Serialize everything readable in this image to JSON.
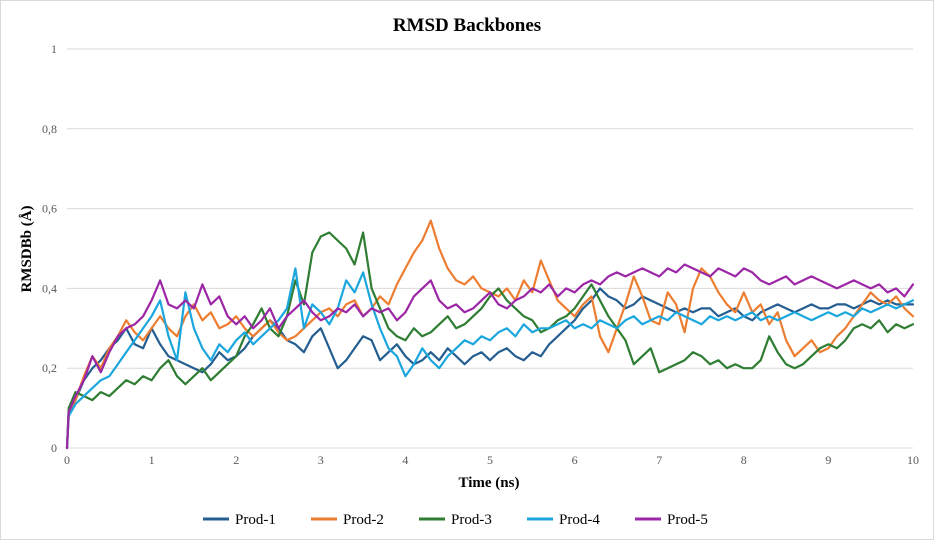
{
  "chart_data": {
    "type": "line",
    "title": "RMSD Backbones",
    "xlabel": "Time (ns)",
    "ylabel": "RMSDBb (Å)",
    "xlim": [
      0,
      10
    ],
    "ylim": [
      0,
      1
    ],
    "x_ticks": [
      "0",
      "1",
      "2",
      "3",
      "4",
      "5",
      "6",
      "7",
      "8",
      "9",
      "10"
    ],
    "y_ticks": [
      "0",
      "0,2",
      "0,4",
      "0,6",
      "0,8",
      "1"
    ],
    "grid": "horizontal",
    "legend_position": "bottom",
    "series": [
      {
        "name": "Prod-1",
        "color": "#255e91",
        "x": [
          0,
          0.02,
          0.1,
          0.2,
          0.3,
          0.4,
          0.5,
          0.6,
          0.7,
          0.8,
          0.9,
          1.0,
          1.1,
          1.2,
          1.3,
          1.4,
          1.5,
          1.6,
          1.7,
          1.8,
          1.9,
          2.0,
          2.1,
          2.2,
          2.3,
          2.4,
          2.5,
          2.6,
          2.7,
          2.8,
          2.9,
          3.0,
          3.1,
          3.2,
          3.3,
          3.4,
          3.5,
          3.6,
          3.7,
          3.8,
          3.9,
          4.0,
          4.1,
          4.2,
          4.3,
          4.4,
          4.5,
          4.6,
          4.7,
          4.8,
          4.9,
          5.0,
          5.1,
          5.2,
          5.3,
          5.4,
          5.5,
          5.6,
          5.7,
          5.8,
          5.9,
          6.0,
          6.1,
          6.2,
          6.3,
          6.4,
          6.5,
          6.6,
          6.7,
          6.8,
          6.9,
          7.0,
          7.1,
          7.2,
          7.3,
          7.4,
          7.5,
          7.6,
          7.7,
          7.8,
          7.9,
          8.0,
          8.1,
          8.2,
          8.3,
          8.4,
          8.5,
          8.6,
          8.7,
          8.8,
          8.9,
          9.0,
          9.1,
          9.2,
          9.3,
          9.4,
          9.5,
          9.6,
          9.7,
          9.8,
          9.9,
          10.0
        ],
        "values": [
          0.0,
          0.09,
          0.12,
          0.17,
          0.2,
          0.22,
          0.25,
          0.27,
          0.3,
          0.26,
          0.25,
          0.3,
          0.26,
          0.23,
          0.22,
          0.21,
          0.2,
          0.19,
          0.21,
          0.24,
          0.22,
          0.23,
          0.25,
          0.28,
          0.3,
          0.32,
          0.3,
          0.27,
          0.26,
          0.24,
          0.28,
          0.3,
          0.25,
          0.2,
          0.22,
          0.25,
          0.28,
          0.27,
          0.22,
          0.24,
          0.26,
          0.23,
          0.21,
          0.22,
          0.24,
          0.22,
          0.25,
          0.23,
          0.21,
          0.23,
          0.24,
          0.22,
          0.24,
          0.25,
          0.23,
          0.22,
          0.24,
          0.23,
          0.26,
          0.28,
          0.3,
          0.32,
          0.35,
          0.37,
          0.4,
          0.38,
          0.37,
          0.35,
          0.36,
          0.38,
          0.37,
          0.36,
          0.35,
          0.34,
          0.35,
          0.34,
          0.35,
          0.35,
          0.33,
          0.34,
          0.35,
          0.33,
          0.32,
          0.34,
          0.35,
          0.36,
          0.35,
          0.34,
          0.35,
          0.36,
          0.35,
          0.35,
          0.36,
          0.36,
          0.35,
          0.36,
          0.37,
          0.36,
          0.37,
          0.36,
          0.36,
          0.36
        ]
      },
      {
        "name": "Prod-2",
        "color": "#ed7d31",
        "x": [
          0,
          0.02,
          0.1,
          0.2,
          0.3,
          0.4,
          0.5,
          0.6,
          0.7,
          0.8,
          0.9,
          1.0,
          1.1,
          1.2,
          1.3,
          1.4,
          1.5,
          1.6,
          1.7,
          1.8,
          1.9,
          2.0,
          2.1,
          2.2,
          2.3,
          2.4,
          2.5,
          2.6,
          2.7,
          2.8,
          2.9,
          3.0,
          3.1,
          3.2,
          3.3,
          3.4,
          3.5,
          3.6,
          3.7,
          3.8,
          3.9,
          4.0,
          4.1,
          4.2,
          4.3,
          4.4,
          4.5,
          4.6,
          4.7,
          4.8,
          4.9,
          5.0,
          5.1,
          5.2,
          5.3,
          5.4,
          5.5,
          5.6,
          5.7,
          5.8,
          5.9,
          6.0,
          6.1,
          6.2,
          6.3,
          6.4,
          6.5,
          6.6,
          6.7,
          6.8,
          6.9,
          7.0,
          7.1,
          7.2,
          7.3,
          7.4,
          7.5,
          7.6,
          7.7,
          7.8,
          7.9,
          8.0,
          8.1,
          8.2,
          8.3,
          8.4,
          8.5,
          8.6,
          8.7,
          8.8,
          8.9,
          9.0,
          9.1,
          9.2,
          9.3,
          9.4,
          9.5,
          9.6,
          9.7,
          9.8,
          9.9,
          10.0
        ],
        "values": [
          0.0,
          0.08,
          0.12,
          0.18,
          0.23,
          0.2,
          0.25,
          0.28,
          0.32,
          0.29,
          0.27,
          0.3,
          0.33,
          0.3,
          0.28,
          0.33,
          0.36,
          0.32,
          0.34,
          0.3,
          0.31,
          0.33,
          0.3,
          0.28,
          0.3,
          0.32,
          0.29,
          0.27,
          0.28,
          0.3,
          0.32,
          0.34,
          0.35,
          0.33,
          0.36,
          0.37,
          0.33,
          0.35,
          0.38,
          0.36,
          0.41,
          0.45,
          0.49,
          0.52,
          0.57,
          0.5,
          0.45,
          0.42,
          0.41,
          0.43,
          0.4,
          0.39,
          0.38,
          0.4,
          0.37,
          0.42,
          0.39,
          0.47,
          0.42,
          0.37,
          0.35,
          0.33,
          0.36,
          0.38,
          0.28,
          0.24,
          0.3,
          0.36,
          0.43,
          0.38,
          0.32,
          0.31,
          0.39,
          0.36,
          0.29,
          0.4,
          0.45,
          0.43,
          0.39,
          0.36,
          0.34,
          0.39,
          0.34,
          0.36,
          0.31,
          0.34,
          0.27,
          0.23,
          0.25,
          0.27,
          0.24,
          0.25,
          0.28,
          0.3,
          0.33,
          0.36,
          0.39,
          0.37,
          0.36,
          0.38,
          0.35,
          0.33
        ]
      },
      {
        "name": "Prod-3",
        "color": "#2e7d32",
        "x": [
          0,
          0.02,
          0.1,
          0.2,
          0.3,
          0.4,
          0.5,
          0.6,
          0.7,
          0.8,
          0.9,
          1.0,
          1.1,
          1.2,
          1.3,
          1.4,
          1.5,
          1.6,
          1.7,
          1.8,
          1.9,
          2.0,
          2.1,
          2.2,
          2.3,
          2.4,
          2.5,
          2.6,
          2.7,
          2.8,
          2.9,
          3.0,
          3.1,
          3.2,
          3.3,
          3.4,
          3.5,
          3.6,
          3.7,
          3.8,
          3.9,
          4.0,
          4.1,
          4.2,
          4.3,
          4.4,
          4.5,
          4.6,
          4.7,
          4.8,
          4.9,
          5.0,
          5.1,
          5.2,
          5.3,
          5.4,
          5.5,
          5.6,
          5.7,
          5.8,
          5.9,
          6.0,
          6.1,
          6.2,
          6.3,
          6.4,
          6.5,
          6.6,
          6.7,
          6.8,
          6.9,
          7.0,
          7.1,
          7.2,
          7.3,
          7.4,
          7.5,
          7.6,
          7.7,
          7.8,
          7.9,
          8.0,
          8.1,
          8.2,
          8.3,
          8.4,
          8.5,
          8.6,
          8.7,
          8.8,
          8.9,
          9.0,
          9.1,
          9.2,
          9.3,
          9.4,
          9.5,
          9.6,
          9.7,
          9.8,
          9.9,
          10.0
        ],
        "values": [
          0.0,
          0.1,
          0.14,
          0.13,
          0.12,
          0.14,
          0.13,
          0.15,
          0.17,
          0.16,
          0.18,
          0.17,
          0.2,
          0.22,
          0.18,
          0.16,
          0.18,
          0.2,
          0.17,
          0.19,
          0.21,
          0.23,
          0.28,
          0.31,
          0.35,
          0.3,
          0.28,
          0.33,
          0.42,
          0.36,
          0.49,
          0.53,
          0.54,
          0.52,
          0.5,
          0.46,
          0.54,
          0.4,
          0.35,
          0.3,
          0.28,
          0.27,
          0.3,
          0.28,
          0.29,
          0.31,
          0.33,
          0.3,
          0.31,
          0.33,
          0.35,
          0.38,
          0.4,
          0.37,
          0.35,
          0.33,
          0.32,
          0.29,
          0.3,
          0.32,
          0.33,
          0.35,
          0.38,
          0.41,
          0.37,
          0.33,
          0.3,
          0.27,
          0.21,
          0.23,
          0.25,
          0.19,
          0.2,
          0.21,
          0.22,
          0.24,
          0.23,
          0.21,
          0.22,
          0.2,
          0.21,
          0.2,
          0.2,
          0.22,
          0.28,
          0.24,
          0.21,
          0.2,
          0.21,
          0.23,
          0.25,
          0.26,
          0.25,
          0.27,
          0.3,
          0.31,
          0.3,
          0.32,
          0.29,
          0.31,
          0.3,
          0.31
        ]
      },
      {
        "name": "Prod-4",
        "color": "#1ba7de",
        "x": [
          0,
          0.02,
          0.1,
          0.2,
          0.3,
          0.4,
          0.5,
          0.6,
          0.7,
          0.8,
          0.9,
          1.0,
          1.1,
          1.2,
          1.3,
          1.4,
          1.5,
          1.6,
          1.7,
          1.8,
          1.9,
          2.0,
          2.1,
          2.2,
          2.3,
          2.4,
          2.5,
          2.6,
          2.7,
          2.8,
          2.9,
          3.0,
          3.1,
          3.2,
          3.3,
          3.4,
          3.5,
          3.6,
          3.7,
          3.8,
          3.9,
          4.0,
          4.1,
          4.2,
          4.3,
          4.4,
          4.5,
          4.6,
          4.7,
          4.8,
          4.9,
          5.0,
          5.1,
          5.2,
          5.3,
          5.4,
          5.5,
          5.6,
          5.7,
          5.8,
          5.9,
          6.0,
          6.1,
          6.2,
          6.3,
          6.4,
          6.5,
          6.6,
          6.7,
          6.8,
          6.9,
          7.0,
          7.1,
          7.2,
          7.3,
          7.4,
          7.5,
          7.6,
          7.7,
          7.8,
          7.9,
          8.0,
          8.1,
          8.2,
          8.3,
          8.4,
          8.5,
          8.6,
          8.7,
          8.8,
          8.9,
          9.0,
          9.1,
          9.2,
          9.3,
          9.4,
          9.5,
          9.6,
          9.7,
          9.8,
          9.9,
          10.0
        ],
        "values": [
          0.0,
          0.08,
          0.11,
          0.13,
          0.15,
          0.17,
          0.18,
          0.21,
          0.24,
          0.27,
          0.3,
          0.33,
          0.37,
          0.28,
          0.22,
          0.39,
          0.3,
          0.25,
          0.22,
          0.26,
          0.24,
          0.27,
          0.29,
          0.26,
          0.28,
          0.3,
          0.32,
          0.35,
          0.45,
          0.3,
          0.36,
          0.34,
          0.31,
          0.35,
          0.42,
          0.39,
          0.44,
          0.36,
          0.3,
          0.25,
          0.23,
          0.18,
          0.21,
          0.25,
          0.22,
          0.2,
          0.23,
          0.25,
          0.27,
          0.26,
          0.28,
          0.27,
          0.29,
          0.3,
          0.28,
          0.31,
          0.29,
          0.3,
          0.3,
          0.31,
          0.32,
          0.3,
          0.31,
          0.3,
          0.32,
          0.31,
          0.3,
          0.32,
          0.33,
          0.31,
          0.32,
          0.33,
          0.32,
          0.34,
          0.33,
          0.32,
          0.31,
          0.33,
          0.32,
          0.33,
          0.32,
          0.33,
          0.34,
          0.32,
          0.33,
          0.32,
          0.33,
          0.34,
          0.33,
          0.32,
          0.33,
          0.34,
          0.33,
          0.34,
          0.33,
          0.35,
          0.34,
          0.35,
          0.36,
          0.35,
          0.36,
          0.37
        ]
      },
      {
        "name": "Prod-5",
        "color": "#9c27a6",
        "x": [
          0,
          0.02,
          0.1,
          0.2,
          0.3,
          0.4,
          0.5,
          0.6,
          0.7,
          0.8,
          0.9,
          1.0,
          1.1,
          1.2,
          1.3,
          1.4,
          1.5,
          1.6,
          1.7,
          1.8,
          1.9,
          2.0,
          2.1,
          2.2,
          2.3,
          2.4,
          2.5,
          2.6,
          2.7,
          2.8,
          2.9,
          3.0,
          3.1,
          3.2,
          3.3,
          3.4,
          3.5,
          3.6,
          3.7,
          3.8,
          3.9,
          4.0,
          4.1,
          4.2,
          4.3,
          4.4,
          4.5,
          4.6,
          4.7,
          4.8,
          4.9,
          5.0,
          5.1,
          5.2,
          5.3,
          5.4,
          5.5,
          5.6,
          5.7,
          5.8,
          5.9,
          6.0,
          6.1,
          6.2,
          6.3,
          6.4,
          6.5,
          6.6,
          6.7,
          6.8,
          6.9,
          7.0,
          7.1,
          7.2,
          7.3,
          7.4,
          7.5,
          7.6,
          7.7,
          7.8,
          7.9,
          8.0,
          8.1,
          8.2,
          8.3,
          8.4,
          8.5,
          8.6,
          8.7,
          8.8,
          8.9,
          9.0,
          9.1,
          9.2,
          9.3,
          9.4,
          9.5,
          9.6,
          9.7,
          9.8,
          9.9,
          10.0
        ],
        "values": [
          0.0,
          0.09,
          0.13,
          0.17,
          0.23,
          0.19,
          0.24,
          0.28,
          0.3,
          0.31,
          0.33,
          0.37,
          0.42,
          0.36,
          0.35,
          0.37,
          0.35,
          0.41,
          0.36,
          0.38,
          0.33,
          0.31,
          0.33,
          0.3,
          0.32,
          0.35,
          0.3,
          0.33,
          0.35,
          0.37,
          0.34,
          0.32,
          0.33,
          0.35,
          0.34,
          0.36,
          0.33,
          0.35,
          0.34,
          0.35,
          0.32,
          0.34,
          0.38,
          0.4,
          0.42,
          0.37,
          0.35,
          0.36,
          0.34,
          0.35,
          0.37,
          0.39,
          0.36,
          0.35,
          0.37,
          0.38,
          0.4,
          0.39,
          0.41,
          0.38,
          0.4,
          0.39,
          0.41,
          0.42,
          0.41,
          0.43,
          0.44,
          0.43,
          0.44,
          0.45,
          0.44,
          0.43,
          0.45,
          0.44,
          0.46,
          0.45,
          0.44,
          0.43,
          0.45,
          0.44,
          0.43,
          0.45,
          0.44,
          0.42,
          0.41,
          0.42,
          0.43,
          0.41,
          0.42,
          0.43,
          0.42,
          0.41,
          0.4,
          0.41,
          0.42,
          0.41,
          0.4,
          0.41,
          0.39,
          0.4,
          0.38,
          0.41
        ]
      }
    ]
  }
}
